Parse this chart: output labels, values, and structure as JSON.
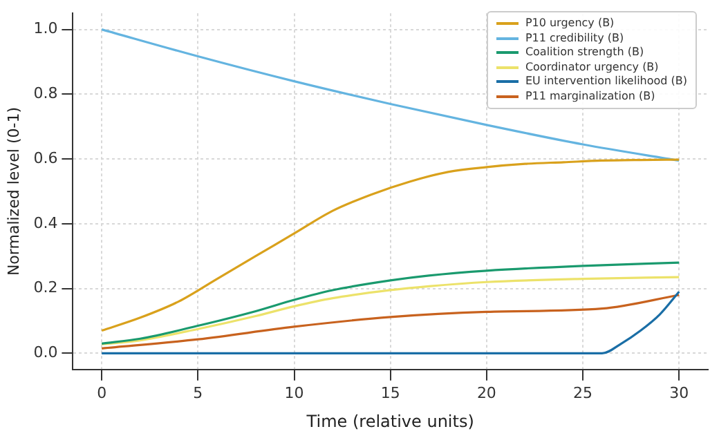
{
  "chart_data": {
    "type": "line",
    "xlabel": "Time (relative units)",
    "ylabel": "Normalized level (0-1)",
    "xlim": [
      -1.5,
      31.5
    ],
    "xticks": [
      0,
      5,
      10,
      15,
      20,
      25,
      30
    ],
    "ylim": [
      -0.05,
      1.05
    ],
    "yticks": [
      {
        "value": 0,
        "label": "0.0"
      },
      {
        "value": 0.2,
        "label": "0.2"
      },
      {
        "value": 0.4,
        "label": "0.4"
      },
      {
        "value": 0.6,
        "label": "0.6"
      },
      {
        "value": 0.8,
        "label": "0.8"
      },
      {
        "value": 1,
        "label": "1.0"
      }
    ],
    "grid": true,
    "legend": "top right",
    "line_style": "solid",
    "marker": "none",
    "series": [
      {
        "name": "P10 urgency (B)",
        "color": "#d9a11c",
        "x": [
          0,
          2,
          4,
          6,
          8,
          10,
          12,
          14,
          16,
          18,
          20,
          22,
          24,
          26,
          28,
          30
        ],
        "values": [
          0.07,
          0.11,
          0.16,
          0.23,
          0.3,
          0.37,
          0.44,
          0.49,
          0.53,
          0.56,
          0.575,
          0.585,
          0.59,
          0.595,
          0.597,
          0.598
        ]
      },
      {
        "name": "P11 credibility (B)",
        "color": "#64b4e0",
        "x": [
          0,
          5,
          10,
          15,
          20,
          25,
          30
        ],
        "values": [
          1.0,
          0.917,
          0.84,
          0.77,
          0.705,
          0.645,
          0.595
        ]
      },
      {
        "name": "Coalition strength (B)",
        "color": "#1a9a6e",
        "x": [
          0,
          2,
          5,
          8,
          10,
          12,
          15,
          17,
          20,
          25,
          30
        ],
        "values": [
          0.03,
          0.045,
          0.085,
          0.13,
          0.165,
          0.195,
          0.225,
          0.24,
          0.255,
          0.27,
          0.28
        ]
      },
      {
        "name": "Coordinator urgency (B)",
        "color": "#ece26a",
        "x": [
          0,
          2,
          5,
          8,
          10,
          12,
          15,
          17,
          20,
          25,
          30
        ],
        "values": [
          0.028,
          0.04,
          0.075,
          0.115,
          0.145,
          0.17,
          0.195,
          0.207,
          0.22,
          0.23,
          0.235
        ]
      },
      {
        "name": "EU intervention likelihood (B)",
        "color": "#1a6ea6",
        "x": [
          0,
          10,
          20,
          26,
          27,
          28,
          29,
          30
        ],
        "values": [
          0,
          0,
          0,
          0,
          0.03,
          0.07,
          0.12,
          0.19
        ]
      },
      {
        "name": "P11 marginalization (B)",
        "color": "#c8621e",
        "x": [
          0,
          5,
          10,
          15,
          20,
          26,
          30
        ],
        "values": [
          0.015,
          0.043,
          0.082,
          0.112,
          0.128,
          0.138,
          0.18
        ]
      }
    ]
  }
}
